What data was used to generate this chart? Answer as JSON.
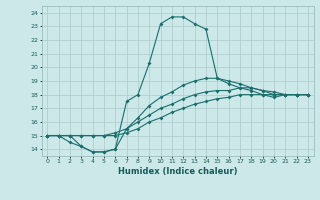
{
  "bg_color": "#cce8e8",
  "grid_color": "#aacccc",
  "line_color": "#1a6e6e",
  "xlabel": "Humidex (Indice chaleur)",
  "xlim": [
    -0.5,
    23.5
  ],
  "ylim": [
    13.5,
    24.5
  ],
  "xticks": [
    0,
    1,
    2,
    3,
    4,
    5,
    6,
    7,
    8,
    9,
    10,
    11,
    12,
    13,
    14,
    15,
    16,
    17,
    18,
    19,
    20,
    21,
    22,
    23
  ],
  "yticks": [
    14,
    15,
    16,
    17,
    18,
    19,
    20,
    21,
    22,
    23,
    24
  ],
  "line1_x": [
    0,
    1,
    2,
    3,
    4,
    5,
    6,
    7,
    8,
    9,
    10,
    11,
    12,
    13,
    14,
    15,
    16,
    17,
    18,
    19,
    20,
    21,
    22,
    23
  ],
  "line1_y": [
    15,
    15,
    15,
    14.2,
    13.8,
    13.8,
    14.0,
    17.5,
    18.0,
    20.3,
    23.2,
    23.7,
    23.7,
    23.2,
    22.8,
    19.2,
    18.8,
    18.5,
    18.3,
    18.0,
    18.0,
    18.0,
    18.0,
    18.0
  ],
  "line2_x": [
    0,
    1,
    2,
    3,
    4,
    5,
    6,
    7,
    8,
    9,
    10,
    11,
    12,
    13,
    14,
    15,
    16,
    17,
    18,
    19,
    20,
    21,
    22,
    23
  ],
  "line2_y": [
    15,
    15,
    14.5,
    14.2,
    13.8,
    13.8,
    14.0,
    15.5,
    16.3,
    17.2,
    17.8,
    18.2,
    18.7,
    19.0,
    19.2,
    19.2,
    19.0,
    18.8,
    18.5,
    18.3,
    18.0,
    18.0,
    18.0,
    18.0
  ],
  "line3_x": [
    0,
    1,
    2,
    3,
    4,
    5,
    6,
    7,
    8,
    9,
    10,
    11,
    12,
    13,
    14,
    15,
    16,
    17,
    18,
    19,
    20,
    21,
    22,
    23
  ],
  "line3_y": [
    15,
    15,
    15,
    15,
    15,
    15,
    15.2,
    15.5,
    16.0,
    16.5,
    17.0,
    17.3,
    17.7,
    18.0,
    18.2,
    18.3,
    18.3,
    18.5,
    18.5,
    18.3,
    18.2,
    18.0,
    18.0,
    18.0
  ],
  "line4_x": [
    0,
    1,
    2,
    3,
    4,
    5,
    6,
    7,
    8,
    9,
    10,
    11,
    12,
    13,
    14,
    15,
    16,
    17,
    18,
    19,
    20,
    21,
    22,
    23
  ],
  "line4_y": [
    15,
    15,
    15,
    15,
    15,
    15,
    15,
    15.2,
    15.5,
    16.0,
    16.3,
    16.7,
    17.0,
    17.3,
    17.5,
    17.7,
    17.8,
    18.0,
    18.0,
    18.0,
    17.8,
    18.0,
    18.0,
    18.0
  ]
}
